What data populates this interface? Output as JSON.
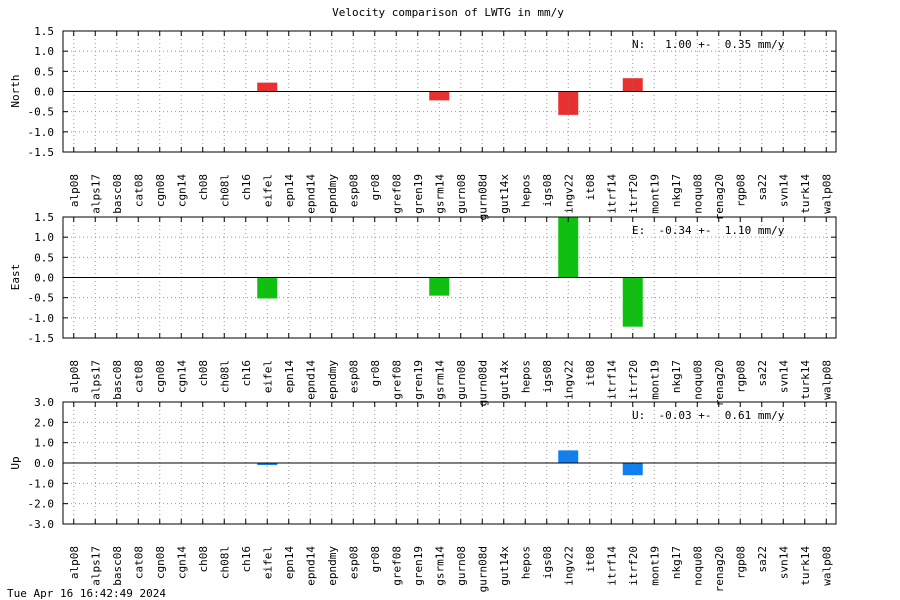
{
  "title": "Velocity comparison of LWTG in mm/y",
  "timestamp": "Tue Apr 16 16:42:49 2024",
  "colors": {
    "north": "#e83030",
    "east": "#10c010",
    "up": "#1080f0"
  },
  "chart_data": [
    {
      "type": "bar",
      "ylabel": "North",
      "ylim": [
        -1.5,
        1.5
      ],
      "yticks": [
        1.5,
        1.0,
        0.5,
        0.0,
        -0.5,
        -1.0,
        -1.5
      ],
      "ytick_labels": [
        "1.5",
        "1.0",
        "0.5",
        "0.0",
        "-0.5",
        "-1.0",
        "-1.5"
      ],
      "grid": true,
      "annotation": "N:   1.00 +-  0.35 mm/y",
      "categories": [
        "alp08",
        "alps17",
        "basc08",
        "cat08",
        "cgn08",
        "cgn14",
        "ch08",
        "ch08l",
        "ch16",
        "eifel",
        "epn14",
        "epnd14",
        "epndmy",
        "esp08",
        "gr08",
        "gref08",
        "gren19",
        "gsrm14",
        "gurn08",
        "gurn08d",
        "gut14x",
        "hepos",
        "igs08",
        "ingv22",
        "it08",
        "itrf14",
        "itrf20",
        "mont19",
        "nkg17",
        "noqu08",
        "renag20",
        "rgp08",
        "sa22",
        "svn14",
        "turk14",
        "walp08"
      ],
      "values": [
        null,
        null,
        null,
        null,
        null,
        null,
        null,
        null,
        null,
        0.22,
        null,
        null,
        null,
        null,
        null,
        null,
        null,
        -0.22,
        null,
        null,
        null,
        null,
        null,
        -0.58,
        null,
        null,
        0.33,
        null,
        null,
        null,
        null,
        null,
        null,
        null,
        null,
        null
      ]
    },
    {
      "type": "bar",
      "ylabel": "East",
      "ylim": [
        -1.5,
        1.5
      ],
      "yticks": [
        1.5,
        1.0,
        0.5,
        0.0,
        -0.5,
        -1.0,
        -1.5
      ],
      "ytick_labels": [
        "1.5",
        "1.0",
        "0.5",
        "0.0",
        "-0.5",
        "-1.0",
        "-1.5"
      ],
      "grid": true,
      "annotation": "E:  -0.34 +-  1.10 mm/y",
      "categories": [
        "alp08",
        "alps17",
        "basc08",
        "cat08",
        "cgn08",
        "cgn14",
        "ch08",
        "ch08l",
        "ch16",
        "eifel",
        "epn14",
        "epnd14",
        "epndmy",
        "esp08",
        "gr08",
        "gref08",
        "gren19",
        "gsrm14",
        "gurn08",
        "gurn08d",
        "gut14x",
        "hepos",
        "igs08",
        "ingv22",
        "it08",
        "itrf14",
        "itrf20",
        "mont19",
        "nkg17",
        "noqu08",
        "renag20",
        "rgp08",
        "sa22",
        "svn14",
        "turk14",
        "walp08"
      ],
      "values": [
        null,
        null,
        null,
        null,
        null,
        null,
        null,
        null,
        null,
        -0.52,
        null,
        null,
        null,
        null,
        null,
        null,
        null,
        -0.45,
        null,
        null,
        null,
        null,
        null,
        1.5,
        null,
        null,
        -1.22,
        null,
        null,
        null,
        null,
        null,
        null,
        null,
        null,
        null
      ]
    },
    {
      "type": "bar",
      "ylabel": "Up",
      "ylim": [
        -3.0,
        3.0
      ],
      "yticks": [
        3.0,
        2.0,
        1.0,
        0.0,
        -1.0,
        -2.0,
        -3.0
      ],
      "ytick_labels": [
        "3.0",
        "2.0",
        "1.0",
        "0.0",
        "-1.0",
        "-2.0",
        "-3.0"
      ],
      "grid": true,
      "annotation": "U:  -0.03 +-  0.61 mm/y",
      "categories": [
        "alp08",
        "alps17",
        "basc08",
        "cat08",
        "cgn08",
        "cgn14",
        "ch08",
        "ch08l",
        "ch16",
        "eifel",
        "epn14",
        "epnd14",
        "epndmy",
        "esp08",
        "gr08",
        "gref08",
        "gren19",
        "gsrm14",
        "gurn08",
        "gurn08d",
        "gut14x",
        "hepos",
        "igs08",
        "ingv22",
        "it08",
        "itrf14",
        "itrf20",
        "mont19",
        "nkg17",
        "noqu08",
        "renag20",
        "rgp08",
        "sa22",
        "svn14",
        "turk14",
        "walp08"
      ],
      "values": [
        null,
        null,
        null,
        null,
        null,
        null,
        null,
        null,
        null,
        -0.08,
        null,
        null,
        null,
        null,
        null,
        null,
        null,
        null,
        null,
        null,
        null,
        null,
        null,
        0.62,
        null,
        null,
        -0.6,
        null,
        null,
        null,
        null,
        null,
        null,
        null,
        null,
        null
      ]
    }
  ]
}
